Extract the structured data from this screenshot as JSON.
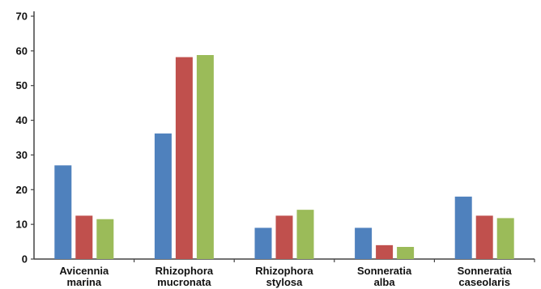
{
  "chart_data": {
    "type": "bar",
    "categories": [
      [
        "Avicennia",
        "marina"
      ],
      [
        "Rhizophora",
        "mucronata"
      ],
      [
        "Rhizophora",
        "stylosa"
      ],
      [
        "Sonneratia",
        "alba"
      ],
      [
        "Sonneratia",
        "caseolaris"
      ]
    ],
    "series": [
      {
        "color": "#4f81bd",
        "values": [
          27,
          36.2,
          9,
          9,
          18
        ]
      },
      {
        "color": "#c0504d",
        "values": [
          12.5,
          58.2,
          12.5,
          4,
          12.5
        ]
      },
      {
        "color": "#9bbb59",
        "values": [
          11.5,
          58.8,
          14.2,
          3.5,
          11.8
        ]
      }
    ],
    "ylim": [
      0,
      70
    ],
    "yticks": [
      0,
      10,
      20,
      30,
      40,
      50,
      60,
      70
    ],
    "grid": false,
    "legend": "none",
    "title": "",
    "xlabel": "",
    "ylabel": ""
  }
}
